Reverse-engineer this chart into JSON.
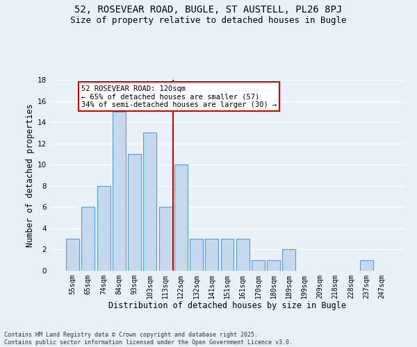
{
  "title_line1": "52, ROSEVEAR ROAD, BUGLE, ST AUSTELL, PL26 8PJ",
  "title_line2": "Size of property relative to detached houses in Bugle",
  "xlabel": "Distribution of detached houses by size in Bugle",
  "ylabel": "Number of detached properties",
  "bar_labels": [
    "55sqm",
    "65sqm",
    "74sqm",
    "84sqm",
    "93sqm",
    "103sqm",
    "113sqm",
    "122sqm",
    "132sqm",
    "141sqm",
    "151sqm",
    "161sqm",
    "170sqm",
    "180sqm",
    "189sqm",
    "199sqm",
    "209sqm",
    "218sqm",
    "228sqm",
    "237sqm",
    "247sqm"
  ],
  "bar_values": [
    3,
    6,
    8,
    15,
    11,
    13,
    6,
    10,
    3,
    3,
    3,
    3,
    1,
    1,
    2,
    0,
    0,
    0,
    0,
    1,
    0
  ],
  "bar_color": "#c5d8ed",
  "bar_edge_color": "#5b9bd5",
  "annotation_text": "52 ROSEVEAR ROAD: 120sqm\n← 65% of detached houses are smaller (57)\n34% of semi-detached houses are larger (30) →",
  "annotation_box_color": "#ffffff",
  "annotation_box_edge_color": "#cc0000",
  "vline_x": 6.5,
  "vline_color": "#cc0000",
  "ylim": [
    0,
    18
  ],
  "yticks": [
    0,
    2,
    4,
    6,
    8,
    10,
    12,
    14,
    16,
    18
  ],
  "bg_color": "#e8f0f8",
  "plot_bg_color": "#e8f0f8",
  "grid_color": "#ffffff",
  "footnote": "Contains HM Land Registry data © Crown copyright and database right 2025.\nContains public sector information licensed under the Open Government Licence v3.0.",
  "title_fontsize": 10,
  "subtitle_fontsize": 9,
  "axis_label_fontsize": 8.5,
  "tick_fontsize": 7,
  "annotation_fontsize": 7.5,
  "footnote_fontsize": 6
}
